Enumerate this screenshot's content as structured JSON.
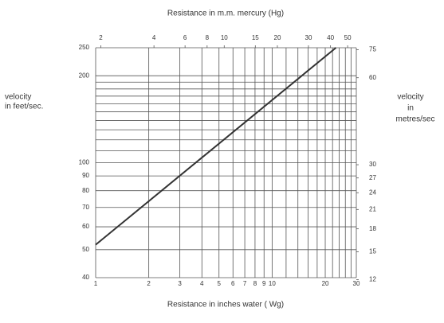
{
  "chart_data": {
    "type": "line",
    "title": "Resistance in m.m. mercury (Hg)",
    "xlabel": "Resistance in inches water ( Wg)",
    "ylabel": [
      "velocity",
      "in feet/sec."
    ],
    "y2label": [
      "velocity",
      "in",
      "metres/sec"
    ],
    "xscale": "log",
    "yscale": "log",
    "xlim": [
      1,
      30
    ],
    "xticks": [
      1,
      2,
      3,
      4,
      5,
      6,
      7,
      8,
      9,
      10,
      20,
      30
    ],
    "xgrid": [
      12,
      14,
      16,
      18,
      22,
      24,
      26,
      28
    ],
    "x2lim": [
      1.87,
      56
    ],
    "x2ticks": [
      2,
      4,
      6,
      8,
      10,
      15,
      20,
      30,
      40,
      50
    ],
    "ylim": [
      40,
      250
    ],
    "yticks": [
      40,
      50,
      60,
      70,
      80,
      90,
      100,
      200,
      250
    ],
    "ygrid": [
      110,
      120,
      130,
      140,
      150,
      160,
      170,
      180,
      190
    ],
    "y2lim": [
      12.2,
      76.2
    ],
    "y2ticks": [
      12,
      15,
      18,
      21,
      24,
      27,
      30,
      60,
      75
    ],
    "grid": true,
    "series": [
      {
        "color": "#333333",
        "x": [
          1,
          23
        ],
        "values": [
          52,
          250
        ]
      }
    ]
  }
}
